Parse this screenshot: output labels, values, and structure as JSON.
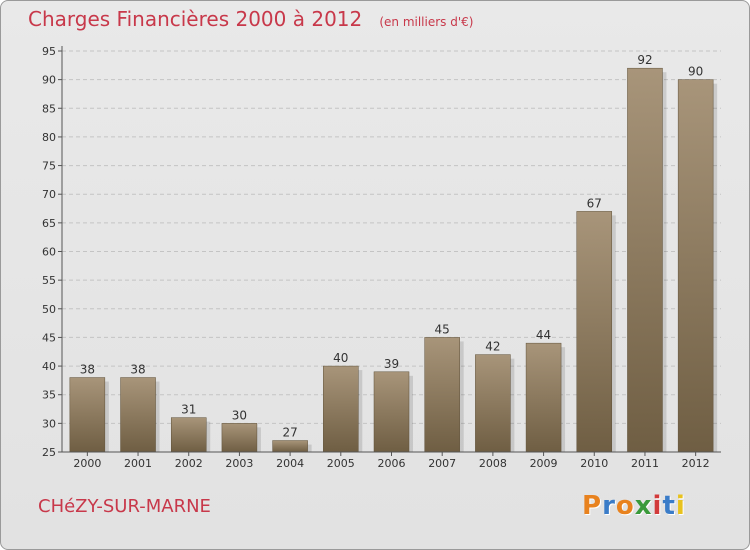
{
  "chart_data": {
    "type": "bar",
    "title": "Charges Financières 2000 à 2012",
    "subtitle": "(en milliers d'€)",
    "categories": [
      "2000",
      "2001",
      "2002",
      "2003",
      "2004",
      "2005",
      "2006",
      "2007",
      "2008",
      "2009",
      "2010",
      "2011",
      "2012"
    ],
    "values": [
      38,
      38,
      31,
      30,
      27,
      40,
      39,
      45,
      42,
      44,
      67,
      92,
      90
    ],
    "ylim": [
      25,
      95
    ],
    "yticks": [
      25,
      30,
      35,
      40,
      45,
      50,
      55,
      60,
      65,
      70,
      75,
      80,
      85,
      90,
      95
    ],
    "grid": true,
    "bar_color": "#8c7a5c"
  },
  "commune": "CHéZY-SUR-MARNE",
  "brand": {
    "text": "Proxiti",
    "letters": [
      {
        "ch": "P",
        "color": "#e8821e"
      },
      {
        "ch": "r",
        "color": "#3a7cc8"
      },
      {
        "ch": "o",
        "color": "#e8821e"
      },
      {
        "ch": "x",
        "color": "#3a9a3a"
      },
      {
        "ch": "i",
        "color": "#d23a3a"
      },
      {
        "ch": "t",
        "color": "#3a7cc8"
      },
      {
        "ch": "i",
        "color": "#e8c21e"
      }
    ]
  }
}
